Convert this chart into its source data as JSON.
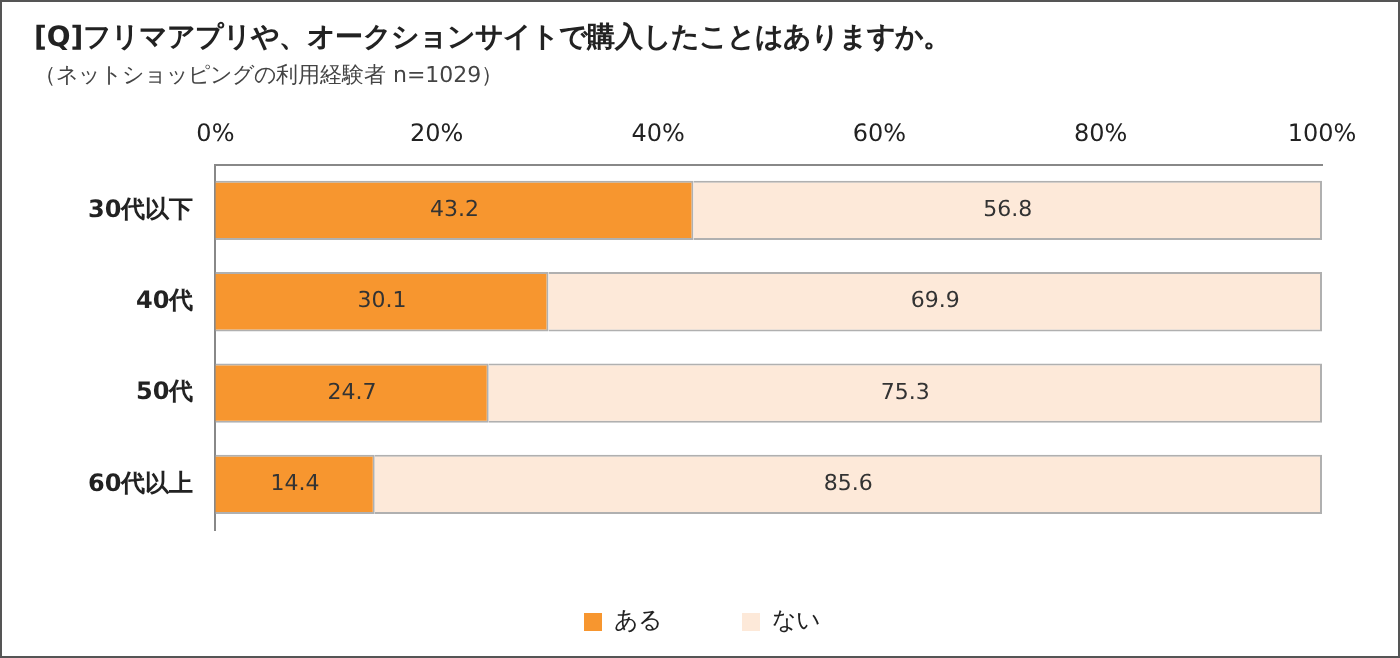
{
  "chart_data": {
    "type": "bar",
    "orientation": "horizontal",
    "stacked": true,
    "title": "[Q]フリマアプリや、オークションサイトで購入したことはありますか。",
    "subtitle": "（ネットショッピングの利用経験者 n=1029）",
    "categories": [
      "30代以下",
      "40代",
      "50代",
      "60代以上"
    ],
    "series": [
      {
        "name": "ある",
        "color": "#f7962f",
        "values": [
          43.2,
          30.1,
          24.7,
          14.4
        ]
      },
      {
        "name": "ない",
        "color": "#fde9d9",
        "values": [
          56.8,
          69.9,
          75.3,
          85.6
        ]
      }
    ],
    "xlim": [
      0,
      100
    ],
    "xticks": [
      {
        "value": 0,
        "label": "0%"
      },
      {
        "value": 20,
        "label": "20%"
      },
      {
        "value": 40,
        "label": "40%"
      },
      {
        "value": 60,
        "label": "60%"
      },
      {
        "value": 80,
        "label": "80%"
      },
      {
        "value": 100,
        "label": "100%"
      }
    ],
    "data_labels": true,
    "grid": false,
    "legend": "bottom"
  }
}
